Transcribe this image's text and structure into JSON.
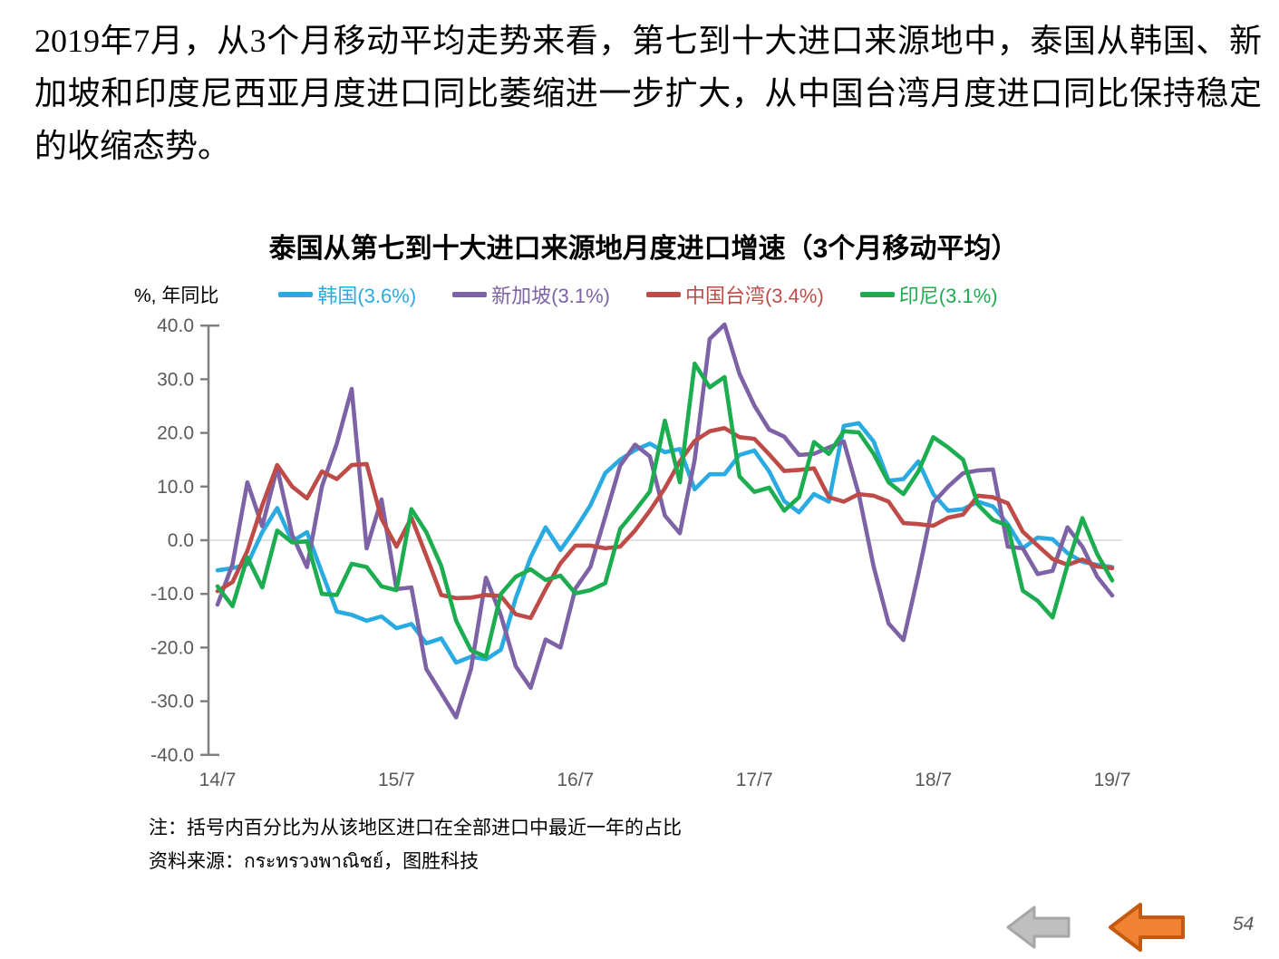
{
  "slide": {
    "intro_text": "2019年7月，从3个月移动平均走势来看，第七到十大进口来源地中，泰国从韩国、新加坡和印度尼西亚月度进口同比萎缩进一步扩大，从中国台湾月度进口同比保持稳定的收缩态势。",
    "page_number": "54"
  },
  "notes": {
    "line1": "注：括号内百分比为从该地区进口在全部进口中最近一年的占比",
    "line2": "资料来源：กระทรวงพาณิชย์，图胜科技"
  },
  "chart_data": {
    "type": "line",
    "title": "泰国从第七到十大进口来源地月度进口增速（3个月移动平均）",
    "ylabel": "%, 年同比",
    "xlabel": "",
    "ylim": [
      -40,
      40
    ],
    "yticks": [
      40,
      30,
      20,
      10,
      0,
      -10,
      -20,
      -30,
      -40
    ],
    "grid": "zero-line-only",
    "legend_position": "top",
    "x_description": "monthly data, July 2014 (14/7) to July 2019 (19/7), 61 points per series",
    "x_ticks": [
      {
        "pos": 0,
        "label": "14/7"
      },
      {
        "pos": 12,
        "label": "15/7"
      },
      {
        "pos": 24,
        "label": "16/7"
      },
      {
        "pos": 36,
        "label": "17/7"
      },
      {
        "pos": 48,
        "label": "18/7"
      },
      {
        "pos": 60,
        "label": "19/7"
      }
    ],
    "colors": {
      "axis": "#808080",
      "tick_label": "#595959",
      "gridline": "#D9D9D9"
    },
    "series": [
      {
        "id": "korea",
        "name": "韩国(3.6%)",
        "color": "#29ABE2",
        "values": [
          -5.6,
          -5.2,
          -4.5,
          1.5,
          6.0,
          -0.2,
          1.5,
          -6.0,
          -13.3,
          -13.9,
          -15.0,
          -14.2,
          -16.4,
          -15.6,
          -19.2,
          -18.3,
          -22.8,
          -21.7,
          -22.2,
          -20.4,
          -10.8,
          -3.2,
          2.4,
          -1.8,
          2.1,
          6.5,
          12.5,
          15.0,
          16.8,
          18.0,
          16.4,
          17.0,
          9.5,
          12.3,
          12.3,
          15.9,
          16.7,
          12.8,
          7.3,
          5.2,
          8.6,
          7.2,
          21.3,
          21.8,
          18.4,
          11.1,
          11.4,
          14.7,
          8.6,
          5.5,
          5.8,
          7.2,
          6.3,
          3.0,
          -1.5,
          0.5,
          0.2,
          -2.4,
          -4.0,
          -4.6,
          -5.0
        ]
      },
      {
        "id": "singapore",
        "name": "新加坡(3.1%)",
        "color": "#7D63A5",
        "values": [
          -12.0,
          -4.5,
          10.8,
          2.6,
          13.5,
          1.0,
          -5.0,
          10.0,
          18.0,
          28.2,
          -1.5,
          7.6,
          -9.1,
          -8.8,
          -24.0,
          -28.5,
          -33.0,
          -24.0,
          -7.0,
          -14.0,
          -23.5,
          -27.5,
          -18.5,
          -20.0,
          -9.0,
          -5.0,
          4.4,
          13.9,
          17.8,
          15.6,
          4.6,
          1.3,
          15.0,
          37.5,
          40.2,
          31.0,
          25.1,
          20.6,
          19.3,
          15.9,
          16.1,
          17.3,
          18.4,
          8.6,
          -4.9,
          -15.5,
          -18.6,
          -6.3,
          7.0,
          10.0,
          12.5,
          13.0,
          13.2,
          -1.2,
          -1.5,
          -6.3,
          -5.7,
          2.4,
          -1.2,
          -6.8,
          -10.3
        ]
      },
      {
        "id": "taiwan-china",
        "name": "中国台湾(3.4%)",
        "color": "#BE4B48",
        "values": [
          -9.5,
          -7.8,
          -2.0,
          6.5,
          14.0,
          10.0,
          7.8,
          12.8,
          11.4,
          14.0,
          14.2,
          4.0,
          -1.2,
          4.2,
          -2.9,
          -10.2,
          -10.8,
          -10.7,
          -10.2,
          -10.4,
          -13.8,
          -14.5,
          -9.1,
          -4.3,
          -1.0,
          -1.0,
          -1.5,
          -1.2,
          1.8,
          5.5,
          9.7,
          14.7,
          18.5,
          20.3,
          20.9,
          19.2,
          18.9,
          16.0,
          12.9,
          13.1,
          13.4,
          8.0,
          7.2,
          8.6,
          8.3,
          7.2,
          3.2,
          3.0,
          2.7,
          4.2,
          4.8,
          8.3,
          8.0,
          6.9,
          1.6,
          -1.0,
          -3.5,
          -4.6,
          -3.6,
          -4.9,
          -5.2
        ]
      },
      {
        "id": "indonesia",
        "name": "印尼(3.1%)",
        "color": "#1CAD50",
        "values": [
          -8.6,
          -12.3,
          -3.2,
          -8.8,
          1.8,
          -0.4,
          -0.2,
          -10.0,
          -10.2,
          -4.4,
          -5.0,
          -8.6,
          -9.3,
          5.8,
          1.5,
          -4.8,
          -15.0,
          -20.5,
          -21.7,
          -10.0,
          -6.8,
          -5.4,
          -7.4,
          -6.6,
          -9.9,
          -9.3,
          -8.0,
          2.1,
          5.5,
          9.1,
          22.3,
          10.8,
          32.9,
          28.5,
          30.4,
          11.9,
          9.0,
          9.8,
          5.5,
          8.0,
          18.3,
          16.1,
          20.3,
          20.1,
          16.1,
          10.8,
          8.6,
          12.8,
          19.2,
          17.3,
          15.0,
          6.6,
          3.8,
          2.7,
          -9.4,
          -11.3,
          -14.4,
          -4.6,
          4.1,
          -2.6,
          -7.5
        ]
      }
    ]
  },
  "nav": {
    "gray_arrow": {
      "fill": "#BFBFBF",
      "stroke": "#A6A6A6"
    },
    "orange_arrow": {
      "fill": "#F08232",
      "stroke": "#C45911"
    }
  }
}
